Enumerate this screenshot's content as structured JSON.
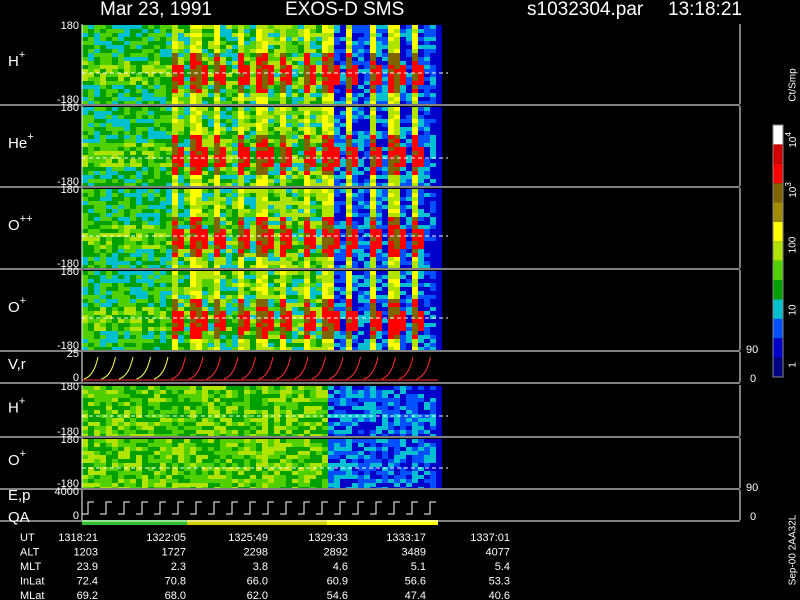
{
  "header": {
    "date": "Mar 23, 1991",
    "instrument": "EXOS-D SMS",
    "file": "s1032304.par",
    "time": "13:18:21"
  },
  "panels": [
    {
      "label": "H",
      "sup": "+",
      "top": "180",
      "bottom": "-180"
    },
    {
      "label": "He",
      "sup": "+",
      "top": "180",
      "bottom": "-180"
    },
    {
      "label": "O",
      "sup": "++",
      "top": "180",
      "bottom": "-180"
    },
    {
      "label": "O",
      "sup": "+",
      "top": "180",
      "bottom": "-180"
    },
    {
      "label": "V,r",
      "top": "25",
      "bottom": "0",
      "right_top": "90",
      "right_bottom": "0"
    },
    {
      "label": "H",
      "sup": "+",
      "top": "180",
      "bottom": "-180"
    },
    {
      "label": "O",
      "sup": "+",
      "top": "180",
      "bottom": "-180"
    },
    {
      "label": "E,p",
      "label2": "QA",
      "top": "4000",
      "bottom": "0",
      "right_top": "90",
      "right_bottom": "0"
    }
  ],
  "colorbar": {
    "label": "Ct/Smp",
    "power_ticks": [
      {
        "base": "10",
        "exp": "4"
      },
      {
        "base": "10",
        "exp": "3"
      }
    ],
    "ticks": [
      "100",
      "10",
      "1"
    ]
  },
  "footer": "Sep-00 2AA32L",
  "table": {
    "rows": [
      [
        "UT",
        "1318:21",
        "1322:05",
        "1325:49",
        "1329:33",
        "1333:17",
        "1337:01"
      ],
      [
        "ALT",
        "1203",
        "1727",
        "2298",
        "2892",
        "3489",
        "4077"
      ],
      [
        "MLT",
        "23.9",
        "2.3",
        "3.8",
        "4.6",
        "5.1",
        "5.4"
      ],
      [
        "InLat",
        "72.4",
        "70.8",
        "66.0",
        "60.9",
        "56.6",
        "53.3"
      ],
      [
        "MLat",
        "69.2",
        "68.0",
        "62.0",
        "54.6",
        "47.4",
        "40.6"
      ]
    ]
  }
}
